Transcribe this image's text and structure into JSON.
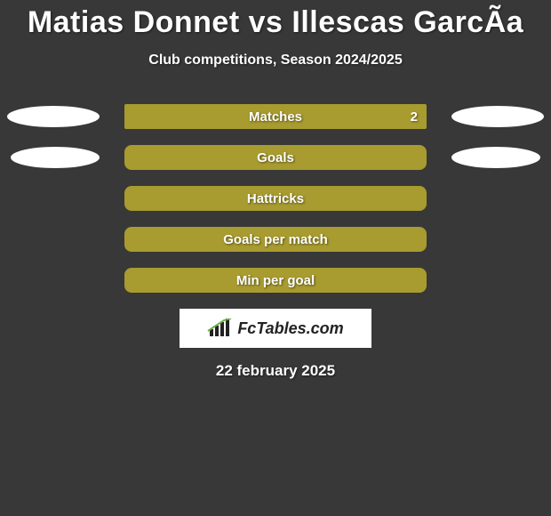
{
  "background_color": "#383838",
  "title": "Matias Donnet vs Illescas GarcÃ­a",
  "title_fontsize": 34,
  "subtitle": "Club competitions, Season 2024/2025",
  "subtitle_fontsize": 16,
  "bar_color": "#a89b2f",
  "blob_color": "#ffffff",
  "rows": [
    {
      "label": "Matches",
      "value": "2",
      "left_blob": true,
      "right_blob": true,
      "rounded": false
    },
    {
      "label": "Goals",
      "value": "",
      "left_blob": true,
      "right_blob": true,
      "rounded": true
    },
    {
      "label": "Hattricks",
      "value": "",
      "left_blob": false,
      "right_blob": false,
      "rounded": true
    },
    {
      "label": "Goals per match",
      "value": "",
      "left_blob": false,
      "right_blob": false,
      "rounded": true
    },
    {
      "label": "Min per goal",
      "value": "",
      "left_blob": false,
      "right_blob": false,
      "rounded": true
    }
  ],
  "logo_text": "FcTables.com",
  "logo_bg": "#ffffff",
  "date": "22 february 2025",
  "blob_sizes": {
    "row0": {
      "left_w": 104,
      "right_w": 104
    },
    "row1": {
      "left_w": 100,
      "right_w": 100
    }
  }
}
